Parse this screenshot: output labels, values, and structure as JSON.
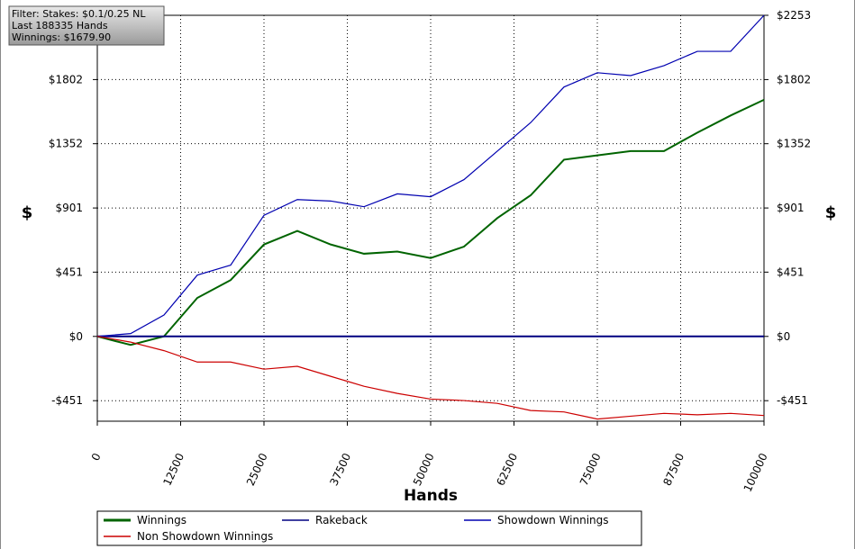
{
  "chart_data": {
    "type": "line",
    "info_box": [
      "Filter: Stakes: $0.1/0.25 NL",
      "Last  188335 Hands",
      "Winnings: $1679.90"
    ],
    "x_label": "Hands",
    "y_label": "$",
    "y2_label": "$",
    "x": [
      0,
      5000,
      10000,
      15000,
      20000,
      25000,
      30000,
      35000,
      40000,
      45000,
      50000,
      55000,
      60000,
      65000,
      70000,
      75000,
      80000,
      85000,
      90000,
      95000,
      100000
    ],
    "series": [
      {
        "name": "Winnings",
        "color": "#006400",
        "values": [
          0,
          -60,
          0,
          270,
          395,
          645,
          740,
          645,
          580,
          595,
          550,
          630,
          830,
          990,
          1240,
          1270,
          1300,
          1300,
          1430,
          1550,
          1660
        ]
      },
      {
        "name": "Rakeback",
        "color": "#000080",
        "values": [
          0,
          0,
          0,
          0,
          0,
          0,
          0,
          0,
          0,
          0,
          0,
          0,
          0,
          0,
          0,
          0,
          0,
          0,
          0,
          0,
          0
        ]
      },
      {
        "name": "Showdown Winnings",
        "color": "#0000b0",
        "values": [
          0,
          20,
          150,
          430,
          500,
          850,
          960,
          950,
          910,
          1000,
          980,
          1100,
          1300,
          1500,
          1750,
          1850,
          1830,
          1900,
          2000,
          2000,
          2253
        ]
      },
      {
        "name": "Non Showdown Winnings",
        "color": "#cc0000",
        "values": [
          0,
          -40,
          -100,
          -180,
          -180,
          -230,
          -210,
          -280,
          -350,
          -400,
          -440,
          -450,
          -470,
          -520,
          -530,
          -580,
          -560,
          -540,
          -550,
          -540,
          -555
        ]
      }
    ],
    "xlim": [
      0,
      100000
    ],
    "xticks": [
      0,
      12500,
      25000,
      37500,
      50000,
      62500,
      75000,
      87500,
      100000
    ],
    "ylim": [
      -595,
      2253
    ],
    "yticks": [
      {
        "value": -451,
        "label": "-$451"
      },
      {
        "value": 0,
        "label": "$0"
      },
      {
        "value": 451,
        "label": "$451"
      },
      {
        "value": 901,
        "label": "$901"
      },
      {
        "value": 1352,
        "label": "$1352"
      },
      {
        "value": 1802,
        "label": "$1802"
      }
    ],
    "y2ticks": [
      {
        "value": -451,
        "label": "-$451"
      },
      {
        "value": 0,
        "label": "$0"
      },
      {
        "value": 451,
        "label": "$451"
      },
      {
        "value": 901,
        "label": "$901"
      },
      {
        "value": 1352,
        "label": "$1352"
      },
      {
        "value": 1802,
        "label": "$1802"
      },
      {
        "value": 2253,
        "label": "$2253"
      }
    ],
    "grid": true
  }
}
